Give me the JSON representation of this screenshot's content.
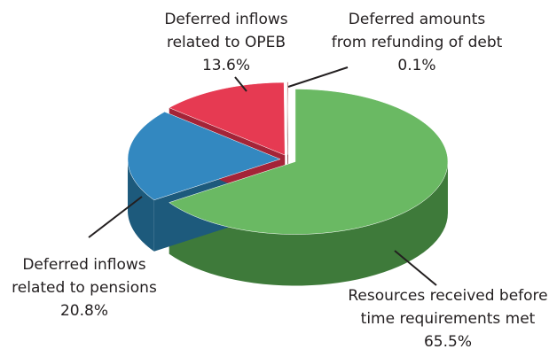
{
  "chart_data": {
    "type": "pie3d",
    "categories": [
      [
        "Resources received before",
        "time requirements met"
      ],
      [
        "Deferred inflows",
        "related to pensions"
      ],
      [
        "Deferred inflows",
        "related to OPEB"
      ],
      [
        "Deferred amounts",
        "from refunding of debt"
      ]
    ],
    "values": [
      65.5,
      20.8,
      13.6,
      0.1
    ],
    "value_labels": [
      "65.5%",
      "20.8%",
      "13.6%",
      "0.1%"
    ],
    "colors": [
      "#6ab963",
      "#3388c0",
      "#e63a52",
      "#a0292e"
    ],
    "side_colors": [
      "#3e7a3a",
      "#1d5a7c",
      "#a42438",
      "#6e1a1d"
    ]
  }
}
